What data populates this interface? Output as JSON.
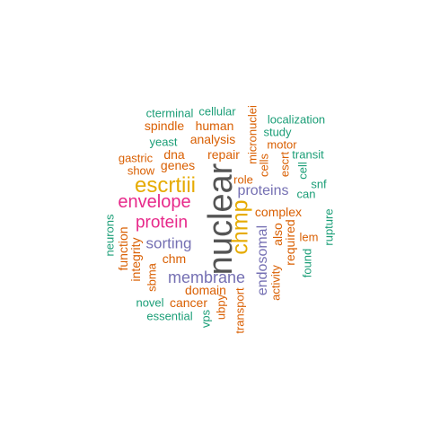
{
  "palette": {
    "green": "#1b9e77",
    "orange": "#d95f02",
    "purple": "#7570b3",
    "pink": "#e7298a",
    "gold": "#e6ab02",
    "gray": "#555555"
  },
  "words": [
    {
      "text": "nuclear",
      "color": "gray",
      "rotated": true
    },
    {
      "text": "escrtiii",
      "color": "gold",
      "rotated": false
    },
    {
      "text": "chmp",
      "color": "gold",
      "rotated": true
    },
    {
      "text": "envelope",
      "color": "pink",
      "rotated": false
    },
    {
      "text": "protein",
      "color": "pink",
      "rotated": false
    },
    {
      "text": "membrane",
      "color": "purple",
      "rotated": false
    },
    {
      "text": "sorting",
      "color": "purple",
      "rotated": false
    },
    {
      "text": "proteins",
      "color": "purple",
      "rotated": false
    },
    {
      "text": "endosomal",
      "color": "purple",
      "rotated": true
    },
    {
      "text": "complex",
      "color": "orange",
      "rotated": false
    },
    {
      "text": "analysis",
      "color": "orange",
      "rotated": false
    },
    {
      "text": "genes",
      "color": "orange",
      "rotated": false
    },
    {
      "text": "human",
      "color": "orange",
      "rotated": false
    },
    {
      "text": "spindle",
      "color": "orange",
      "rotated": false
    },
    {
      "text": "dna",
      "color": "orange",
      "rotated": false
    },
    {
      "text": "repair",
      "color": "orange",
      "rotated": false
    },
    {
      "text": "micronuclei",
      "color": "orange",
      "rotated": true
    },
    {
      "text": "cells",
      "color": "orange",
      "rotated": true
    },
    {
      "text": "role",
      "color": "orange",
      "rotated": false
    },
    {
      "text": "gastric",
      "color": "orange",
      "rotated": false
    },
    {
      "text": "show",
      "color": "orange",
      "rotated": false
    },
    {
      "text": "motor",
      "color": "orange",
      "rotated": false
    },
    {
      "text": "escrt",
      "color": "orange",
      "rotated": true
    },
    {
      "text": "also",
      "color": "orange",
      "rotated": true
    },
    {
      "text": "required",
      "color": "orange",
      "rotated": true
    },
    {
      "text": "activity",
      "color": "orange",
      "rotated": true
    },
    {
      "text": "lem",
      "color": "orange",
      "rotated": false
    },
    {
      "text": "function",
      "color": "orange",
      "rotated": true
    },
    {
      "text": "integrity",
      "color": "orange",
      "rotated": true
    },
    {
      "text": "chm",
      "color": "orange",
      "rotated": false
    },
    {
      "text": "sbma",
      "color": "orange",
      "rotated": true
    },
    {
      "text": "domain",
      "color": "orange",
      "rotated": false
    },
    {
      "text": "cancer",
      "color": "orange",
      "rotated": false
    },
    {
      "text": "ubpy",
      "color": "orange",
      "rotated": true
    },
    {
      "text": "transport",
      "color": "orange",
      "rotated": true
    },
    {
      "text": "cterminal",
      "color": "green",
      "rotated": false
    },
    {
      "text": "cellular",
      "color": "green",
      "rotated": false
    },
    {
      "text": "yeast",
      "color": "green",
      "rotated": false
    },
    {
      "text": "localization",
      "color": "green",
      "rotated": false
    },
    {
      "text": "study",
      "color": "green",
      "rotated": false
    },
    {
      "text": "transit",
      "color": "green",
      "rotated": false
    },
    {
      "text": "cell",
      "color": "green",
      "rotated": true
    },
    {
      "text": "snf",
      "color": "green",
      "rotated": false
    },
    {
      "text": "can",
      "color": "green",
      "rotated": false
    },
    {
      "text": "rupture",
      "color": "green",
      "rotated": true
    },
    {
      "text": "found",
      "color": "green",
      "rotated": true
    },
    {
      "text": "neurons",
      "color": "green",
      "rotated": true
    },
    {
      "text": "novel",
      "color": "green",
      "rotated": false
    },
    {
      "text": "essential",
      "color": "green",
      "rotated": false
    },
    {
      "text": "vps",
      "color": "green",
      "rotated": true
    }
  ]
}
